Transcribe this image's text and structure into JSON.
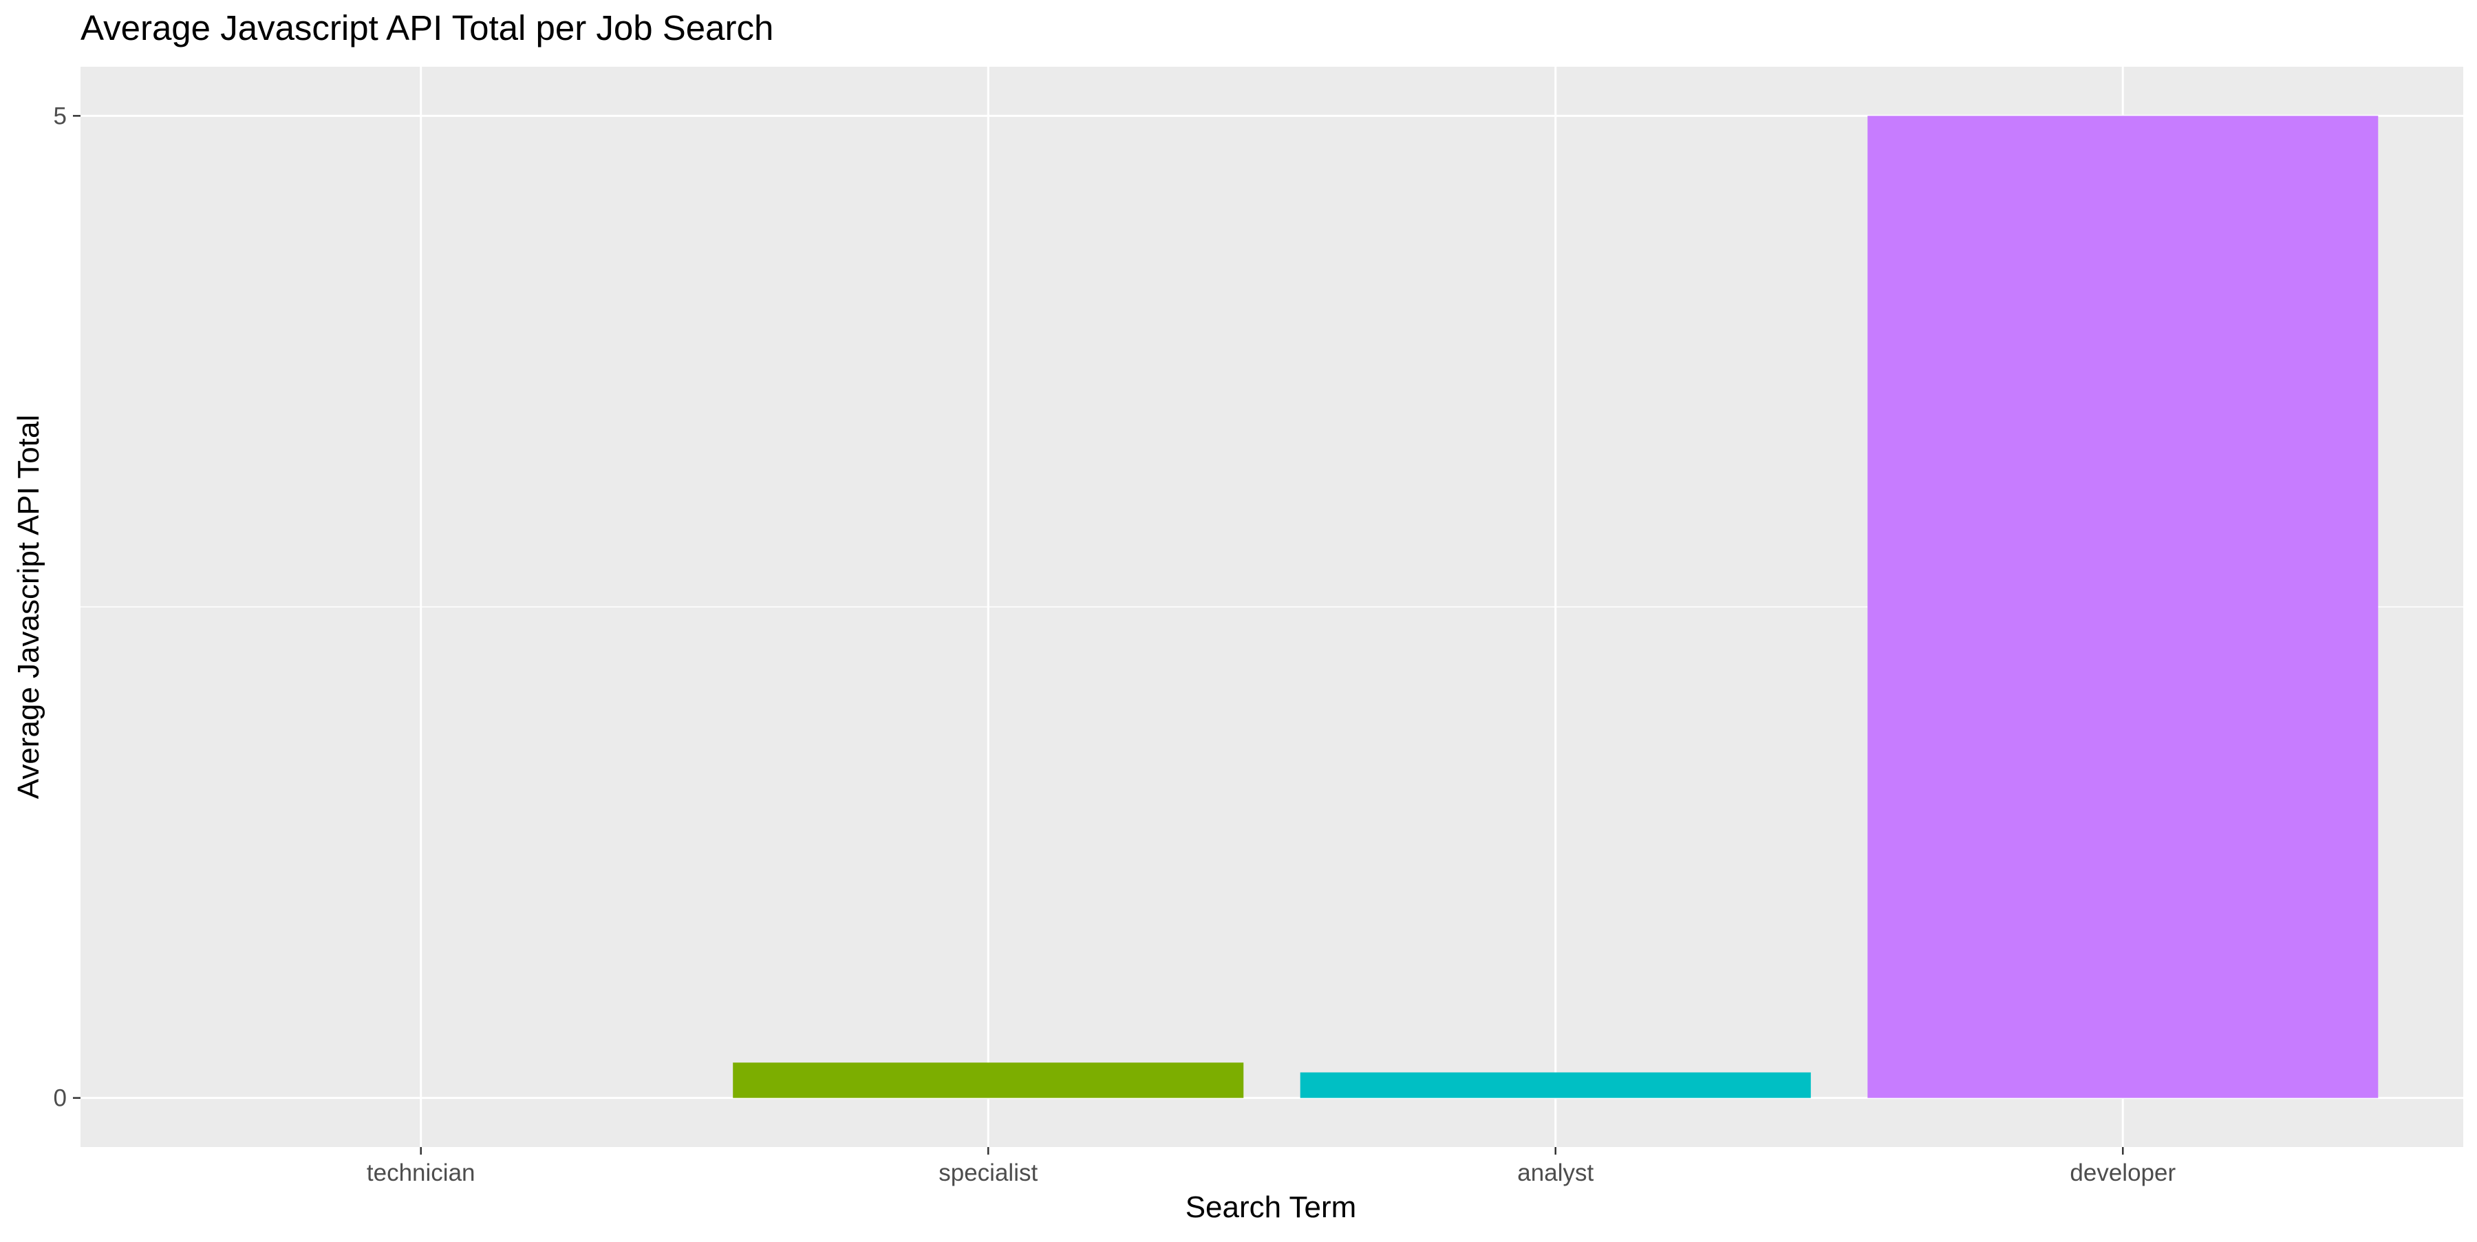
{
  "chart_data": {
    "type": "bar",
    "title": "Average Javascript API Total per Job Search",
    "xlabel": "Search Term",
    "ylabel": "Average Javascript API Total",
    "categories": [
      "technician",
      "specialist",
      "analyst",
      "developer"
    ],
    "values": [
      0,
      0.18,
      0.13,
      5.0
    ],
    "colors": [
      "#F8766D",
      "#7CAE00",
      "#00BFC4",
      "#C77CFF"
    ],
    "y_ticks": [
      0,
      5
    ],
    "ylim": [
      -0.25,
      5.25
    ],
    "grid": true,
    "legend": "none",
    "panel_background": "#EBEBEB",
    "grid_color": "#FFFFFF"
  }
}
